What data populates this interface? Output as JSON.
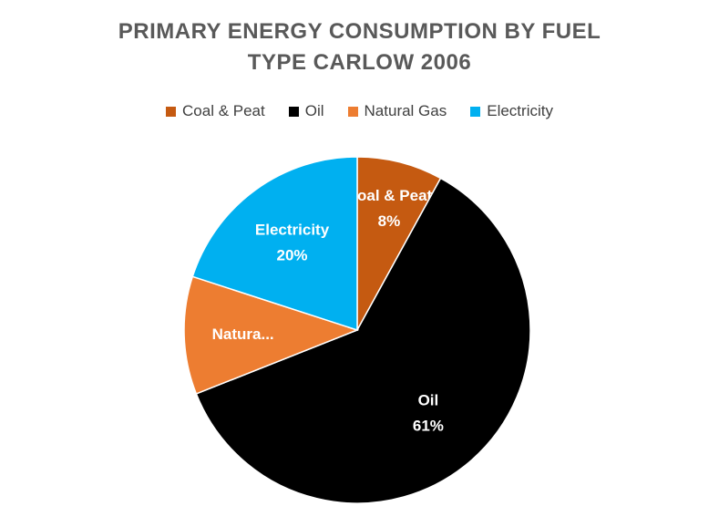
{
  "chart_data": {
    "type": "pie",
    "title_line1": "PRIMARY ENERGY CONSUMPTION BY FUEL",
    "title_line2": "TYPE CARLOW 2006",
    "legend": "top",
    "slices": [
      {
        "name": "Coal & Peat",
        "value": 8,
        "label_name": "Coal & Peat",
        "label_pct": "8%",
        "color": "#C55A11"
      },
      {
        "name": "Oil",
        "value": 61,
        "label_name": "Oil",
        "label_pct": "61%",
        "color": "#000000"
      },
      {
        "name": "Natural Gas",
        "value": 11,
        "label_name": "Natura...",
        "label_pct": "",
        "color": "#ED7D31"
      },
      {
        "name": "Electricity",
        "value": 20,
        "label_name": "Electricity",
        "label_pct": "20%",
        "color": "#00B0F0"
      }
    ]
  }
}
